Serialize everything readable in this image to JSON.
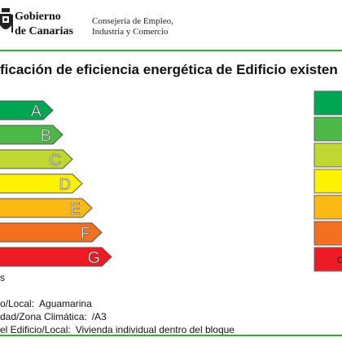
{
  "header": {
    "logo_text": [
      "Gobierno",
      "de Canarias"
    ],
    "department": [
      "Consejería de Empleo,",
      "Industria y Comercio"
    ]
  },
  "title": "ficación de eficiencia energética de Edificio existen",
  "scale": {
    "letters": [
      {
        "letter": "A",
        "color": "#00a651"
      },
      {
        "letter": "B",
        "color": "#4cb848"
      },
      {
        "letter": "C",
        "color": "#bfd730"
      },
      {
        "letter": "D",
        "color": "#fff200"
      },
      {
        "letter": "E",
        "color": "#fdb913"
      },
      {
        "letter": "F",
        "color": "#f37021"
      },
      {
        "letter": "G",
        "color": "#ed1c24"
      }
    ],
    "footnote": "s"
  },
  "rating": {
    "letter": "G"
  },
  "info": [
    {
      "label": "o/Local:",
      "value": "Aguamarina"
    },
    {
      "label": "dad/Zona Climática:",
      "value": "/A3"
    },
    {
      "label": "el Edificio/Local:",
      "value": "Vivienda individual dentro del bloque"
    }
  ]
}
